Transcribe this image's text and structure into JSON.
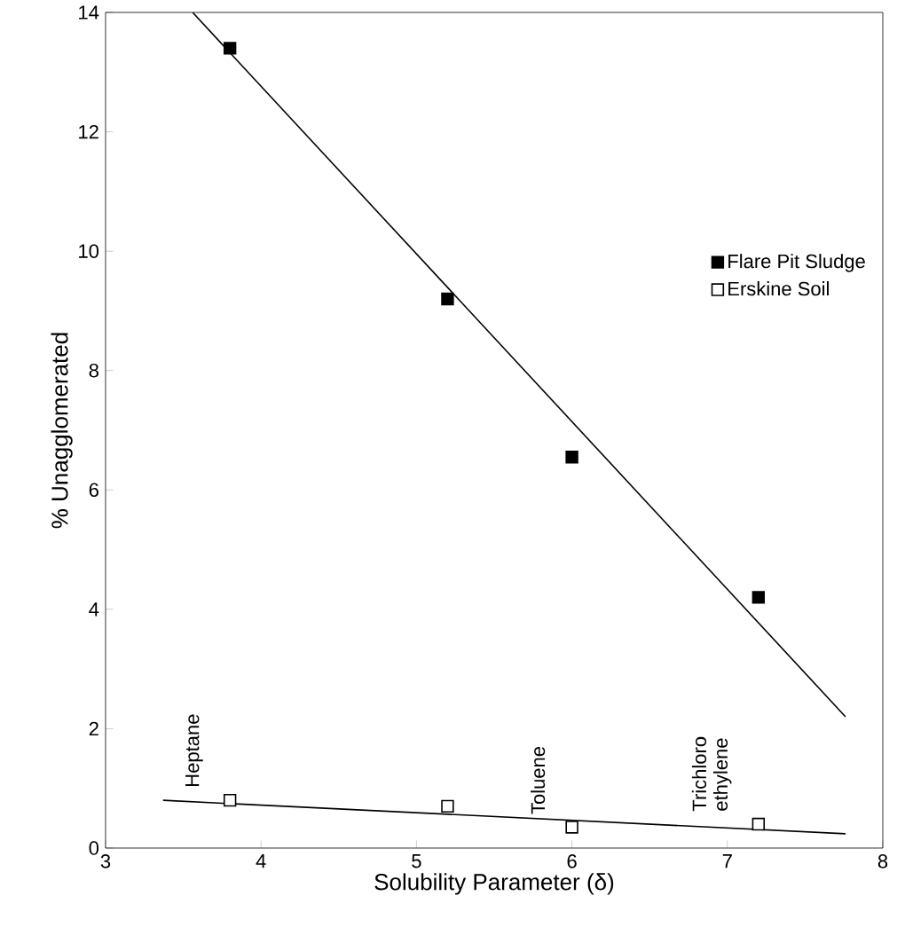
{
  "chart_data": {
    "type": "scatter",
    "xlabel": "Solubility Parameter (δ)",
    "ylabel": "% Unagglomerated",
    "xlim": [
      3,
      8
    ],
    "ylim": [
      0,
      14
    ],
    "xticks": [
      3,
      4,
      5,
      6,
      7,
      8
    ],
    "yticks": [
      0,
      2,
      4,
      6,
      8,
      10,
      12,
      14
    ],
    "legend": "right",
    "grid": false,
    "series": [
      {
        "name": "Flare Pit Sludge",
        "color": "#000000",
        "marker": "square",
        "x": [
          3.8,
          5.2,
          6.0,
          7.2
        ],
        "values": [
          13.4,
          9.2,
          6.55,
          4.2
        ]
      },
      {
        "name": "Erskine Soil",
        "color": "#ffffff",
        "marker": "square",
        "x": [
          3.8,
          5.2,
          6.0,
          7.2
        ],
        "values": [
          0.8,
          0.7,
          0.35,
          0.4
        ]
      },
      {
        "type": "line",
        "marker": "none",
        "color": "#000000",
        "x": [
          3.56,
          7.76
        ],
        "values": [
          14.0,
          2.2
        ]
      },
      {
        "type": "line",
        "marker": "none",
        "color": "#000000",
        "x": [
          3.37,
          7.76
        ],
        "values": [
          0.8,
          0.24
        ]
      }
    ],
    "annotations": [
      {
        "text": "Heptane",
        "x": 3.8,
        "y": 0.8
      },
      {
        "text": "Toluene",
        "x": 6.0,
        "y": 0.35
      },
      {
        "text": "Trichloro ethylene",
        "x": 7.2,
        "y": 0.4
      }
    ]
  }
}
